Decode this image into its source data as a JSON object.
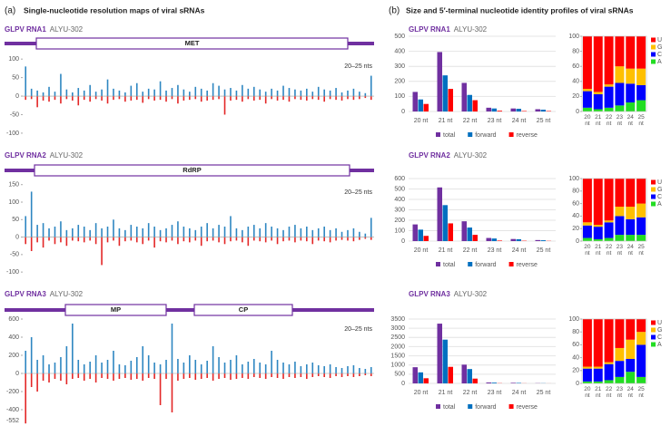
{
  "panels": [
    {
      "label": "(a)",
      "title": "Single-nucleotide resolution maps of viral sRNAs"
    },
    {
      "label": "(b)",
      "title": "Size and 5′-terminal nucleotide identity profiles of viral sRNAs"
    }
  ],
  "chart_data": [
    {
      "type": "coverage",
      "name": "GLPV RNA1",
      "isolate": "ALYU-302",
      "features": [
        "MET"
      ],
      "size_label": "20–25 nts",
      "ylim": [
        -110,
        120
      ],
      "yticks": [
        100,
        50,
        0,
        -50,
        -100
      ],
      "series": [
        {
          "color": "#2e86c1",
          "values": [
            80,
            20,
            15,
            10,
            25,
            12,
            60,
            18,
            10,
            22,
            15,
            30,
            12,
            18,
            45,
            20,
            15,
            10,
            28,
            35,
            12,
            20,
            18,
            40,
            15,
            22,
            30,
            18,
            12,
            25,
            20,
            15,
            35,
            28,
            18,
            22,
            15,
            30,
            20,
            25,
            18,
            12,
            20,
            15,
            28,
            22,
            18,
            15,
            20,
            12,
            25,
            18,
            15,
            22,
            10,
            15,
            20,
            12,
            8,
            55
          ]
        },
        {
          "color": "#e32626",
          "values": [
            -10,
            -8,
            -30,
            -12,
            -15,
            -10,
            -20,
            -8,
            -12,
            -25,
            -10,
            -15,
            -8,
            -12,
            -20,
            -10,
            -8,
            -15,
            -12,
            -10,
            -18,
            -8,
            -12,
            -10,
            -15,
            -8,
            -20,
            -12,
            -10,
            -8,
            -15,
            -12,
            -10,
            -8,
            -50,
            -12,
            -10,
            -15,
            -8,
            -12,
            -10,
            -20,
            -8,
            -12,
            -10,
            -15,
            -8,
            -10,
            -12,
            -8,
            -10,
            -15,
            -8,
            -10,
            -12,
            -8,
            -10,
            -8,
            -5,
            -10
          ]
        }
      ]
    },
    {
      "type": "coverage",
      "name": "GLPV RNA2",
      "isolate": "ALYU-302",
      "features": [
        "RdRP"
      ],
      "size_label": "20–25 nts",
      "ylim": [
        -110,
        170
      ],
      "yticks": [
        150,
        100,
        50,
        0,
        -50,
        -100
      ],
      "series": [
        {
          "color": "#2e86c1",
          "values": [
            60,
            130,
            35,
            40,
            25,
            30,
            45,
            20,
            25,
            35,
            30,
            20,
            40,
            25,
            30,
            50,
            25,
            20,
            35,
            30,
            25,
            40,
            30,
            20,
            25,
            35,
            45,
            30,
            25,
            20,
            30,
            40,
            25,
            35,
            30,
            60,
            25,
            20,
            30,
            35,
            25,
            40,
            30,
            25,
            20,
            30,
            35,
            25,
            30,
            20,
            25,
            30,
            20,
            25,
            15,
            20,
            25,
            15,
            10,
            55
          ]
        },
        {
          "color": "#e32626",
          "values": [
            -20,
            -40,
            -15,
            -30,
            -10,
            -20,
            -15,
            -25,
            -10,
            -12,
            -15,
            -10,
            -20,
            -80,
            -15,
            -10,
            -25,
            -12,
            -10,
            -15,
            -20,
            -10,
            -30,
            -12,
            -15,
            -10,
            -20,
            -12,
            -15,
            -10,
            -25,
            -12,
            -10,
            -15,
            -20,
            -12,
            -10,
            -15,
            -25,
            -10,
            -12,
            -15,
            -10,
            -20,
            -12,
            -10,
            -15,
            -10,
            -12,
            -20,
            -10,
            -12,
            -15,
            -10,
            -8,
            -10,
            -12,
            -8,
            -5,
            -8
          ]
        }
      ]
    },
    {
      "type": "coverage",
      "name": "GLPV RNA3",
      "isolate": "ALYU-302",
      "features": [
        "MP",
        "CP"
      ],
      "size_label": "20–25 nts",
      "ylim": [
        -560,
        650
      ],
      "yticks": [
        600,
        400,
        200,
        0,
        -200,
        -400
      ],
      "annotations": [
        "-552"
      ],
      "series": [
        {
          "color": "#2e86c1",
          "values": [
            250,
            400,
            150,
            200,
            100,
            120,
            180,
            300,
            550,
            150,
            100,
            130,
            200,
            120,
            150,
            250,
            100,
            90,
            140,
            180,
            300,
            200,
            120,
            100,
            150,
            550,
            160,
            120,
            200,
            150,
            100,
            140,
            300,
            180,
            120,
            150,
            200,
            100,
            130,
            160,
            120,
            100,
            250,
            150,
            120,
            100,
            130,
            80,
            100,
            120,
            90,
            80,
            100,
            70,
            60,
            80,
            90,
            60,
            50,
            70
          ]
        },
        {
          "color": "#e32626",
          "values": [
            -552,
            -150,
            -200,
            -80,
            -100,
            -60,
            -80,
            -120,
            -60,
            -50,
            -80,
            -60,
            -100,
            -50,
            -60,
            -80,
            -60,
            -50,
            -70,
            -60,
            -80,
            -50,
            -60,
            -350,
            -60,
            -430,
            -80,
            -60,
            -50,
            -70,
            -60,
            -50,
            -80,
            -60,
            -50,
            -70,
            -60,
            -50,
            -60,
            -40,
            -50,
            -60,
            -40,
            -50,
            -60,
            -40,
            -50,
            -40,
            -60,
            -40,
            -30,
            -40,
            -50,
            -30,
            -40,
            -30,
            -40,
            -30,
            -20,
            -30
          ]
        }
      ]
    },
    {
      "type": "bar",
      "name": "GLPV RNA1",
      "isolate": "ALYU-302",
      "categories": [
        "20 nt",
        "21 nt",
        "22 nt",
        "23 nt",
        "24 nt",
        "25 nt"
      ],
      "ylim": [
        0,
        500
      ],
      "yticks": [
        0,
        100,
        200,
        300,
        400,
        500
      ],
      "grid": true,
      "series": [
        {
          "name": "total",
          "color": "#7030a0",
          "values": [
            130,
            395,
            190,
            25,
            20,
            15
          ]
        },
        {
          "name": "forward",
          "color": "#0070c0",
          "values": [
            80,
            240,
            110,
            20,
            18,
            12
          ]
        },
        {
          "name": "reverse",
          "color": "#ff0000",
          "values": [
            50,
            150,
            75,
            5,
            3,
            3
          ]
        }
      ]
    },
    {
      "type": "stacked_bar",
      "categories": [
        "20 nt",
        "21 nt",
        "22 nt",
        "23 nt",
        "24 nt",
        "25 nt"
      ],
      "ylim": [
        0,
        100
      ],
      "yticks": [
        0,
        20,
        40,
        60,
        80,
        100
      ],
      "series": [
        {
          "name": "A",
          "color": "#22dd22",
          "values": [
            5,
            3,
            5,
            8,
            12,
            15
          ]
        },
        {
          "name": "C",
          "color": "#0000ff",
          "values": [
            22,
            20,
            28,
            30,
            25,
            20
          ]
        },
        {
          "name": "G",
          "color": "#ffc000",
          "values": [
            3,
            3,
            3,
            22,
            20,
            22
          ]
        },
        {
          "name": "U",
          "color": "#ff0000",
          "values": [
            70,
            74,
            64,
            40,
            43,
            43
          ]
        }
      ]
    },
    {
      "type": "bar",
      "name": "GLPV RNA2",
      "isolate": "ALYU-302",
      "categories": [
        "20 nt",
        "21 nt",
        "22 nt",
        "23 nt",
        "24 nt",
        "25 nt"
      ],
      "ylim": [
        0,
        600
      ],
      "yticks": [
        0,
        100,
        200,
        300,
        400,
        500,
        600
      ],
      "grid": true,
      "series": [
        {
          "name": "total",
          "color": "#7030a0",
          "values": [
            160,
            515,
            190,
            30,
            20,
            10
          ]
        },
        {
          "name": "forward",
          "color": "#0070c0",
          "values": [
            110,
            345,
            130,
            25,
            18,
            8
          ]
        },
        {
          "name": "reverse",
          "color": "#ff0000",
          "values": [
            50,
            170,
            60,
            5,
            3,
            2
          ]
        }
      ]
    },
    {
      "type": "stacked_bar",
      "categories": [
        "20 nt",
        "21 nt",
        "22 nt",
        "23 nt",
        "24 nt",
        "25 nt"
      ],
      "ylim": [
        0,
        100
      ],
      "yticks": [
        0,
        20,
        40,
        60,
        80,
        100
      ],
      "series": [
        {
          "name": "A",
          "color": "#22dd22",
          "values": [
            5,
            3,
            5,
            10,
            10,
            10
          ]
        },
        {
          "name": "C",
          "color": "#0000ff",
          "values": [
            20,
            20,
            25,
            30,
            25,
            28
          ]
        },
        {
          "name": "G",
          "color": "#ffc000",
          "values": [
            5,
            3,
            3,
            15,
            20,
            22
          ]
        },
        {
          "name": "U",
          "color": "#ff0000",
          "values": [
            70,
            74,
            67,
            45,
            45,
            40
          ]
        }
      ]
    },
    {
      "type": "bar",
      "name": "GLPV RNA3",
      "isolate": "ALYU-302",
      "categories": [
        "20 nt",
        "21 nt",
        "22 nt",
        "23 nt",
        "24 nt",
        "25 nt"
      ],
      "ylim": [
        0,
        3500
      ],
      "yticks": [
        0,
        500,
        1000,
        1500,
        2000,
        2500,
        3000,
        3500
      ],
      "grid": true,
      "series": [
        {
          "name": "total",
          "color": "#7030a0",
          "values": [
            880,
            3250,
            1020,
            50,
            30,
            10
          ]
        },
        {
          "name": "forward",
          "color": "#0070c0",
          "values": [
            600,
            2380,
            780,
            40,
            25,
            8
          ]
        },
        {
          "name": "reverse",
          "color": "#ff0000",
          "values": [
            280,
            900,
            260,
            10,
            5,
            2
          ]
        }
      ]
    },
    {
      "type": "stacked_bar",
      "categories": [
        "20 nt",
        "21 nt",
        "22 nt",
        "23 nt",
        "24 nt",
        "25 nt"
      ],
      "ylim": [
        0,
        100
      ],
      "yticks": [
        0,
        20,
        40,
        60,
        80,
        100
      ],
      "series": [
        {
          "name": "A",
          "color": "#22dd22",
          "values": [
            3,
            3,
            5,
            10,
            18,
            10
          ]
        },
        {
          "name": "C",
          "color": "#0000ff",
          "values": [
            20,
            20,
            25,
            25,
            20,
            50
          ]
        },
        {
          "name": "G",
          "color": "#ffc000",
          "values": [
            3,
            3,
            3,
            20,
            30,
            20
          ]
        },
        {
          "name": "U",
          "color": "#ff0000",
          "values": [
            74,
            74,
            67,
            45,
            32,
            20
          ]
        }
      ]
    }
  ]
}
